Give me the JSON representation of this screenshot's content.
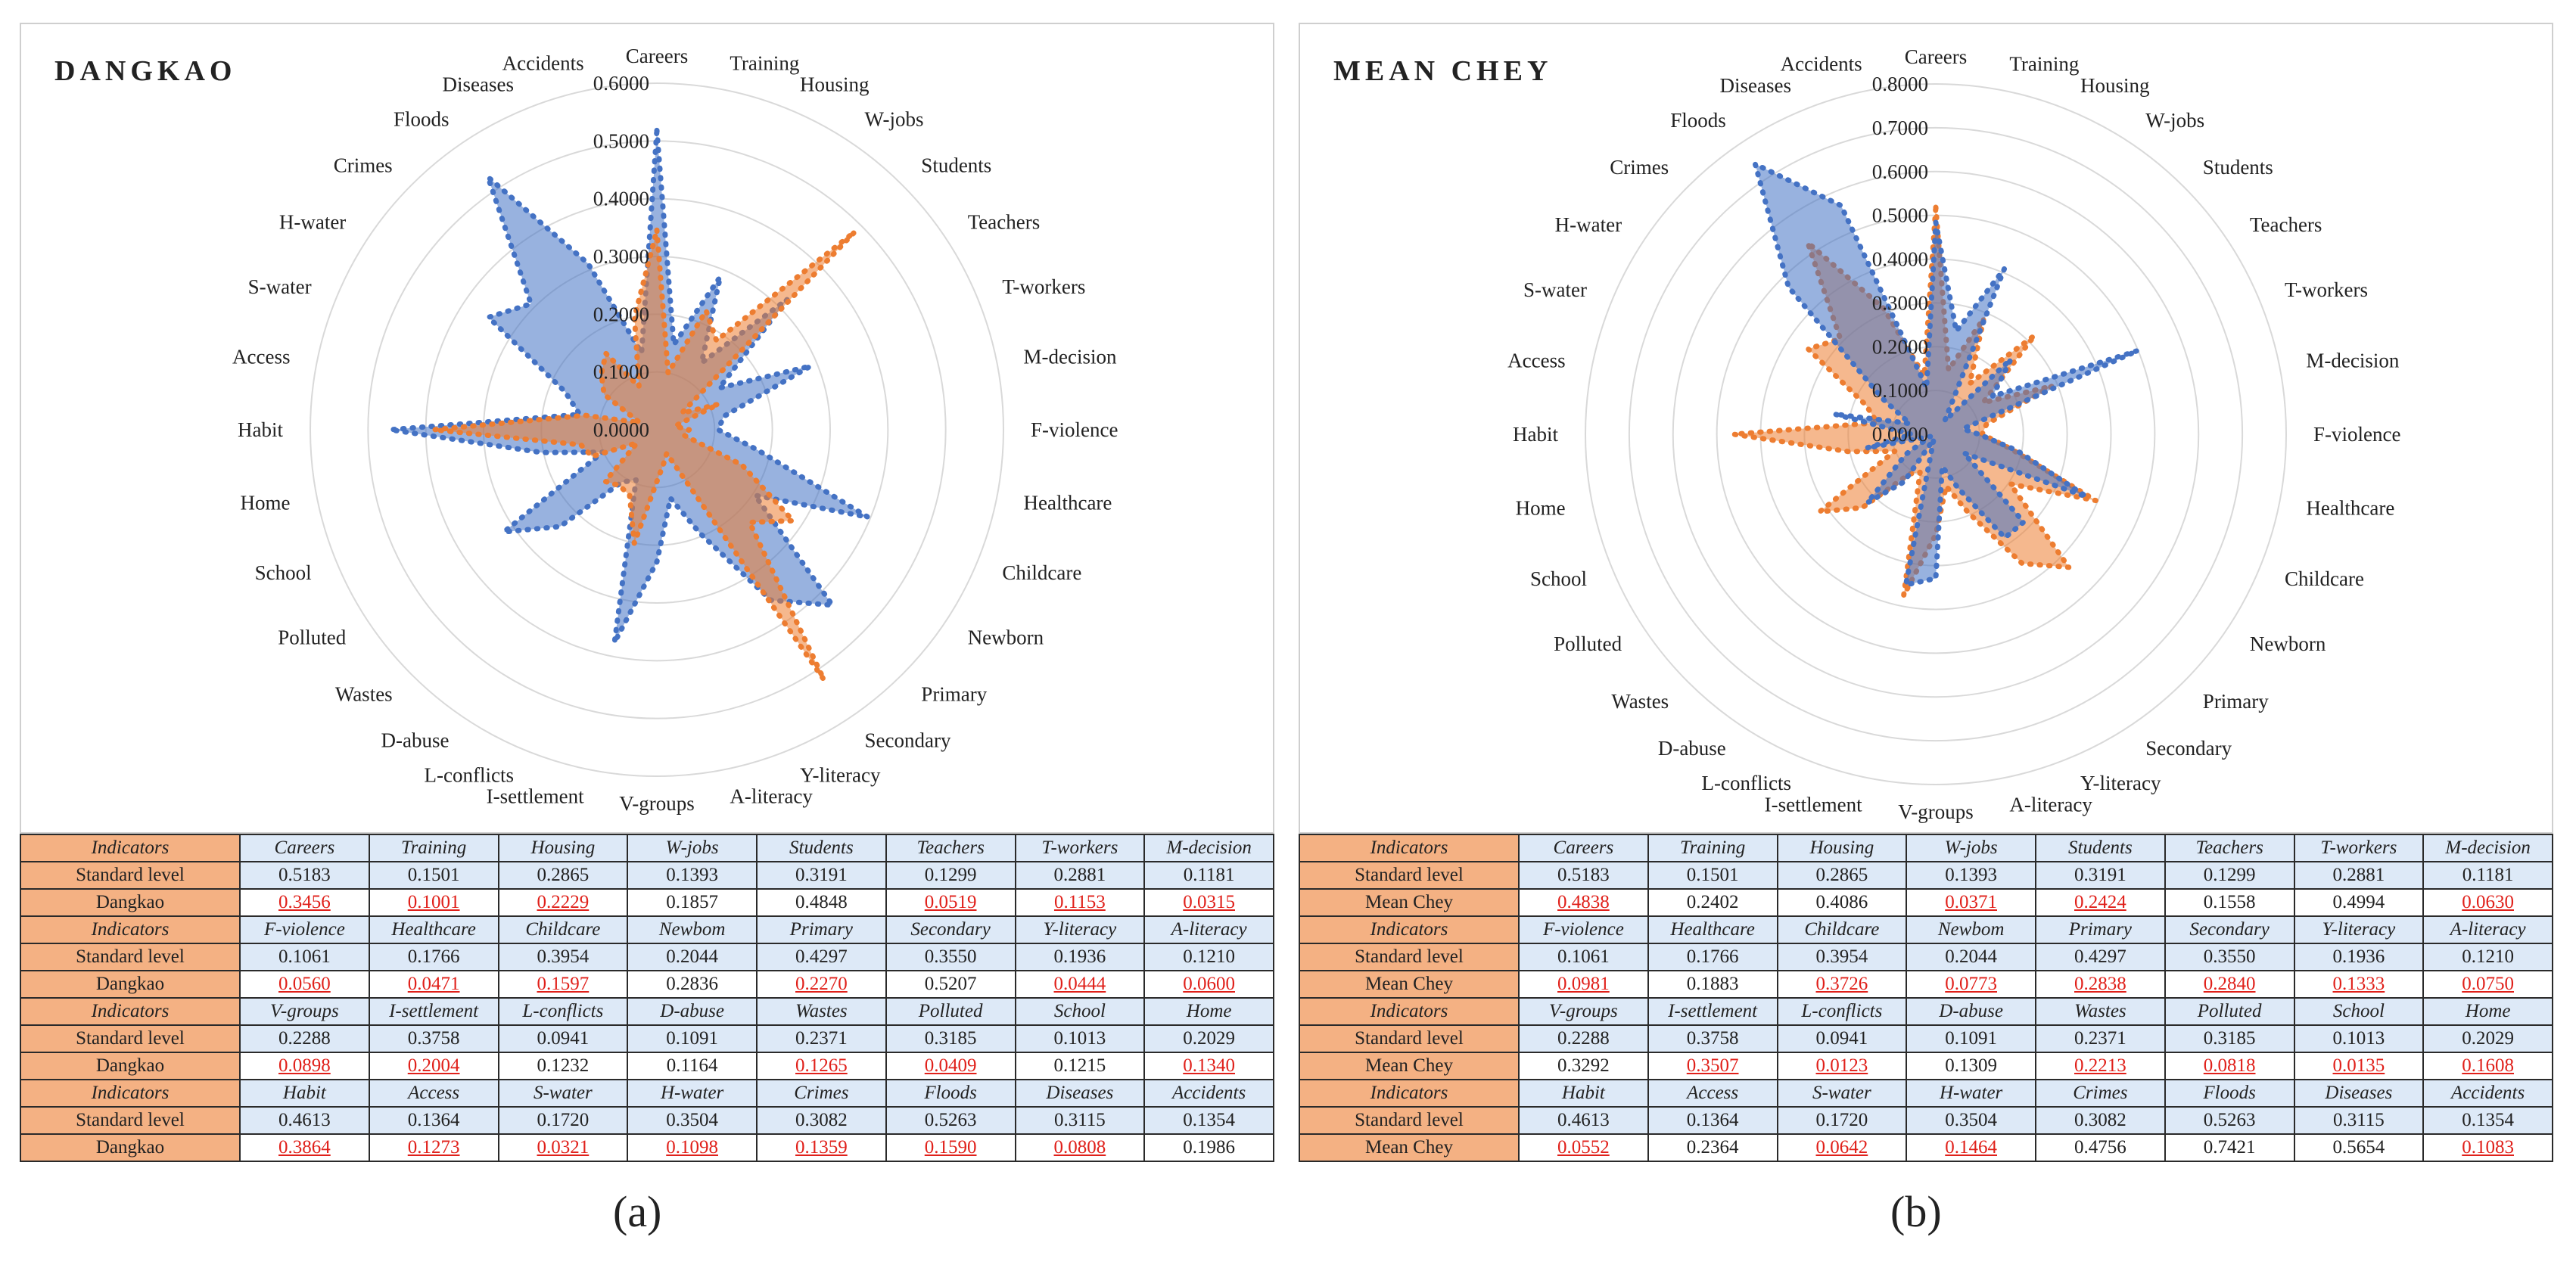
{
  "panels": [
    {
      "title": "DANGKAO",
      "sublabel": "(a)",
      "region_label": "Dangkao",
      "chart_data": {
        "type": "radar",
        "title": "DANGKAO",
        "categories": [
          "Careers",
          "Training",
          "Housing",
          "W-jobs",
          "Students",
          "Teachers",
          "T-workers",
          "M-decision",
          "F-violence",
          "Healthcare",
          "Childcare",
          "Newborn",
          "Primary",
          "Secondary",
          "Y-literacy",
          "A-literacy",
          "V-groups",
          "I-settlement",
          "L-conflicts",
          "D-abuse",
          "Wastes",
          "Polluted",
          "School",
          "Home",
          "Habit",
          "Access",
          "S-water",
          "H-water",
          "Crimes",
          "Floods",
          "Diseases",
          "Accidents"
        ],
        "rlim": [
          0,
          0.6
        ],
        "rticks": [
          "0.0000",
          "0.1000",
          "0.2000",
          "0.3000",
          "0.4000",
          "0.5000",
          "0.6000"
        ],
        "series": [
          {
            "name": "Standard level",
            "color": "#4472c4",
            "values": [
              0.5183,
              0.1501,
              0.2865,
              0.1393,
              0.3191,
              0.1299,
              0.2881,
              0.1181,
              0.1061,
              0.1766,
              0.3954,
              0.2044,
              0.4297,
              0.355,
              0.1936,
              0.121,
              0.2288,
              0.3758,
              0.0941,
              0.1091,
              0.2371,
              0.3185,
              0.1013,
              0.2029,
              0.4613,
              0.1364,
              0.172,
              0.3504,
              0.3082,
              0.5263,
              0.3115,
              0.1354
            ]
          },
          {
            "name": "Dangkao",
            "color": "#ed7d31",
            "values": [
              0.3456,
              0.1001,
              0.2229,
              0.1857,
              0.4848,
              0.0519,
              0.1153,
              0.0315,
              0.056,
              0.0471,
              0.1597,
              0.2836,
              0.227,
              0.5207,
              0.0444,
              0.06,
              0.0898,
              0.2004,
              0.1232,
              0.1164,
              0.1265,
              0.0409,
              0.1215,
              0.134,
              0.3864,
              0.1273,
              0.0321,
              0.1098,
              0.1359,
              0.159,
              0.0808,
              0.1986
            ]
          }
        ]
      },
      "table": {
        "header_label": "Indicators",
        "standard_label": "Standard level",
        "region_label": "Dangkao",
        "blocks": [
          {
            "names": [
              "Careers",
              "Training",
              "Housing",
              "W-jobs",
              "Students",
              "Teachers",
              "T-workers",
              "M-decision"
            ],
            "standard": [
              "0.5183",
              "0.1501",
              "0.2865",
              "0.1393",
              "0.3191",
              "0.1299",
              "0.2881",
              "0.1181"
            ],
            "region": [
              "0.3456",
              "0.1001",
              "0.2229",
              "0.1857",
              "0.4848",
              "0.0519",
              "0.1153",
              "0.0315"
            ],
            "below": [
              true,
              true,
              true,
              false,
              false,
              true,
              true,
              true
            ]
          },
          {
            "names": [
              "F-violence",
              "Healthcare",
              "Childcare",
              "Newbom",
              "Primary",
              "Secondary",
              "Y-literacy",
              "A-literacy"
            ],
            "standard": [
              "0.1061",
              "0.1766",
              "0.3954",
              "0.2044",
              "0.4297",
              "0.3550",
              "0.1936",
              "0.1210"
            ],
            "region": [
              "0.0560",
              "0.0471",
              "0.1597",
              "0.2836",
              "0.2270",
              "0.5207",
              "0.0444",
              "0.0600"
            ],
            "below": [
              true,
              true,
              true,
              false,
              true,
              false,
              true,
              true
            ]
          },
          {
            "names": [
              "V-groups",
              "I-settlement",
              "L-conflicts",
              "D-abuse",
              "Wastes",
              "Polluted",
              "School",
              "Home"
            ],
            "standard": [
              "0.2288",
              "0.3758",
              "0.0941",
              "0.1091",
              "0.2371",
              "0.3185",
              "0.1013",
              "0.2029"
            ],
            "region": [
              "0.0898",
              "0.2004",
              "0.1232",
              "0.1164",
              "0.1265",
              "0.0409",
              "0.1215",
              "0.1340"
            ],
            "below": [
              true,
              true,
              false,
              false,
              true,
              true,
              false,
              true
            ]
          },
          {
            "names": [
              "Habit",
              "Access",
              "S-water",
              "H-water",
              "Crimes",
              "Floods",
              "Diseases",
              "Accidents"
            ],
            "standard": [
              "0.4613",
              "0.1364",
              "0.1720",
              "0.3504",
              "0.3082",
              "0.5263",
              "0.3115",
              "0.1354"
            ],
            "region": [
              "0.3864",
              "0.1273",
              "0.0321",
              "0.1098",
              "0.1359",
              "0.1590",
              "0.0808",
              "0.1986"
            ],
            "below": [
              true,
              true,
              true,
              true,
              true,
              true,
              true,
              false
            ]
          }
        ]
      }
    },
    {
      "title": "MEAN CHEY",
      "sublabel": "(b)",
      "region_label": "Mean Chey",
      "chart_data": {
        "type": "radar",
        "title": "MEAN CHEY",
        "categories": [
          "Careers",
          "Training",
          "Housing",
          "W-jobs",
          "Students",
          "Teachers",
          "T-workers",
          "M-decision",
          "F-violence",
          "Healthcare",
          "Childcare",
          "Newborn",
          "Primary",
          "Secondary",
          "Y-literacy",
          "A-literacy",
          "V-groups",
          "I-settlement",
          "L-conflicts",
          "D-abuse",
          "Wastes",
          "Polluted",
          "School",
          "Home",
          "Habit",
          "Access",
          "S-water",
          "H-water",
          "Crimes",
          "Floods",
          "Diseases",
          "Accidents"
        ],
        "rlim": [
          0,
          0.8
        ],
        "rticks": [
          "0.0000",
          "0.1000",
          "0.2000",
          "0.3000",
          "0.4000",
          "0.5000",
          "0.6000",
          "0.7000",
          "0.8000"
        ],
        "series": [
          {
            "name": "Standard level",
            "color": "#ed7d31",
            "values": [
              0.5183,
              0.1501,
              0.2865,
              0.1393,
              0.3191,
              0.1299,
              0.2881,
              0.1181,
              0.1061,
              0.1766,
              0.3954,
              0.2044,
              0.4297,
              0.355,
              0.1936,
              0.121,
              0.2288,
              0.3758,
              0.0941,
              0.1091,
              0.2371,
              0.3185,
              0.1013,
              0.2029,
              0.4613,
              0.1364,
              0.172,
              0.3504,
              0.3082,
              0.5263,
              0.3115,
              0.1354
            ]
          },
          {
            "name": "Mean Chey",
            "color": "#4472c4",
            "values": [
              0.4838,
              0.2402,
              0.4086,
              0.0371,
              0.2424,
              0.1558,
              0.4994,
              0.063,
              0.0981,
              0.1883,
              0.3726,
              0.0773,
              0.2838,
              0.284,
              0.1333,
              0.075,
              0.3292,
              0.3507,
              0.0123,
              0.1309,
              0.2213,
              0.0818,
              0.0135,
              0.1608,
              0.0552,
              0.2364,
              0.0642,
              0.1464,
              0.4756,
              0.7421,
              0.5654,
              0.1083
            ]
          }
        ]
      },
      "table": {
        "header_label": "Indicators",
        "standard_label": "Standard level",
        "region_label": "Mean Chey",
        "blocks": [
          {
            "names": [
              "Careers",
              "Training",
              "Housing",
              "W-jobs",
              "Students",
              "Teachers",
              "T-workers",
              "M-decision"
            ],
            "standard": [
              "0.5183",
              "0.1501",
              "0.2865",
              "0.1393",
              "0.3191",
              "0.1299",
              "0.2881",
              "0.1181"
            ],
            "region": [
              "0.4838",
              "0.2402",
              "0.4086",
              "0.0371",
              "0.2424",
              "0.1558",
              "0.4994",
              "0.0630"
            ],
            "below": [
              true,
              false,
              false,
              true,
              true,
              false,
              false,
              true
            ]
          },
          {
            "names": [
              "F-violence",
              "Healthcare",
              "Childcare",
              "Newbom",
              "Primary",
              "Secondary",
              "Y-literacy",
              "A-literacy"
            ],
            "standard": [
              "0.1061",
              "0.1766",
              "0.3954",
              "0.2044",
              "0.4297",
              "0.3550",
              "0.1936",
              "0.1210"
            ],
            "region": [
              "0.0981",
              "0.1883",
              "0.3726",
              "0.0773",
              "0.2838",
              "0.2840",
              "0.1333",
              "0.0750"
            ],
            "below": [
              true,
              false,
              true,
              true,
              true,
              true,
              true,
              true
            ]
          },
          {
            "names": [
              "V-groups",
              "I-settlement",
              "L-conflicts",
              "D-abuse",
              "Wastes",
              "Polluted",
              "School",
              "Home"
            ],
            "standard": [
              "0.2288",
              "0.3758",
              "0.0941",
              "0.1091",
              "0.2371",
              "0.3185",
              "0.1013",
              "0.2029"
            ],
            "region": [
              "0.3292",
              "0.3507",
              "0.0123",
              "0.1309",
              "0.2213",
              "0.0818",
              "0.0135",
              "0.1608"
            ],
            "below": [
              false,
              true,
              true,
              false,
              true,
              true,
              true,
              true
            ]
          },
          {
            "names": [
              "Habit",
              "Access",
              "S-water",
              "H-water",
              "Crimes",
              "Floods",
              "Diseases",
              "Accidents"
            ],
            "standard": [
              "0.4613",
              "0.1364",
              "0.1720",
              "0.3504",
              "0.3082",
              "0.5263",
              "0.3115",
              "0.1354"
            ],
            "region": [
              "0.0552",
              "0.2364",
              "0.0642",
              "0.1464",
              "0.4756",
              "0.7421",
              "0.5654",
              "0.1083"
            ],
            "below": [
              true,
              false,
              true,
              true,
              false,
              false,
              false,
              true
            ]
          }
        ]
      }
    }
  ]
}
